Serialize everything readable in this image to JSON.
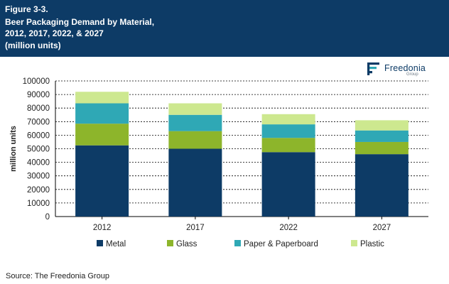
{
  "header": {
    "figure_label": "Figure 3-3.",
    "title_line1": "Beer Packaging Demand by Material,",
    "title_line2": "2012, 2017, 2022, & 2027",
    "title_line3": "(million units)"
  },
  "logo": {
    "name": "Freedonia",
    "sub": "Group",
    "icon": "freedonia-logo-icon"
  },
  "source": "Source: The Freedonia Group",
  "colors": {
    "header_bg": "#0d3b66",
    "Metal": "#0d3b66",
    "Glass": "#8db52b",
    "Paper & Paperboard": "#2fa8b5",
    "Plastic": "#cde88f"
  },
  "chart_data": {
    "type": "bar",
    "stacked": true,
    "title": "Beer Packaging Demand by Material, 2012, 2017, 2022, & 2027",
    "ylabel": "million units",
    "xlabel": "",
    "categories": [
      "2012",
      "2017",
      "2022",
      "2027"
    ],
    "ylim": [
      0,
      100000
    ],
    "yticks": [
      0,
      10000,
      20000,
      30000,
      40000,
      50000,
      60000,
      70000,
      80000,
      90000,
      100000
    ],
    "grid": true,
    "legend_position": "bottom",
    "series": [
      {
        "name": "Metal",
        "values": [
          52500,
          50000,
          47500,
          46000
        ]
      },
      {
        "name": "Glass",
        "values": [
          16000,
          13000,
          10500,
          9000
        ]
      },
      {
        "name": "Paper & Paperboard",
        "values": [
          15000,
          12000,
          10000,
          8500
        ]
      },
      {
        "name": "Plastic",
        "values": [
          8500,
          8500,
          7500,
          7500
        ]
      }
    ]
  }
}
